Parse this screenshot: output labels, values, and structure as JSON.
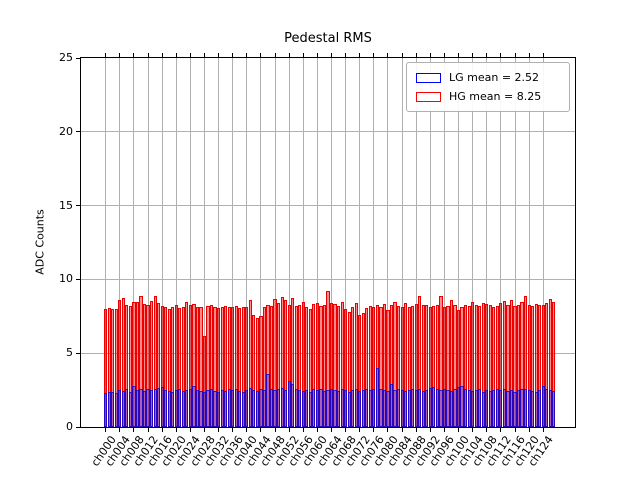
{
  "title": "Pedestal RMS",
  "ylabel": "ADC Counts",
  "colors": {
    "lg": "#0000ff",
    "hg": "#ff0000",
    "grid": "#b0b0b0",
    "spine": "#000000",
    "legend_edge": "#b0b0b0"
  },
  "legend": {
    "position": "upper right",
    "items": [
      {
        "label": "LG mean = 2.52",
        "color": "#0000ff"
      },
      {
        "label": "HG mean = 8.25",
        "color": "#ff0000"
      }
    ]
  },
  "chart_data": {
    "type": "bar",
    "title": "Pedestal RMS",
    "xlabel": "",
    "ylabel": "ADC Counts",
    "ylim": [
      0,
      25
    ],
    "xlim": [
      -7,
      133
    ],
    "yticks": [
      0,
      5,
      10,
      15,
      20,
      25
    ],
    "grid": true,
    "legend_position": "upper right",
    "n_channels": 128,
    "xtick_step": 4,
    "xtick_labels": [
      "ch000",
      "ch004",
      "ch008",
      "ch012",
      "ch016",
      "ch020",
      "ch024",
      "ch028",
      "ch032",
      "ch036",
      "ch040",
      "ch044",
      "ch048",
      "ch052",
      "ch056",
      "ch060",
      "ch064",
      "ch068",
      "ch072",
      "ch076",
      "ch080",
      "ch084",
      "ch088",
      "ch092",
      "ch096",
      "ch100",
      "ch104",
      "ch108",
      "ch112",
      "ch116",
      "ch120",
      "ch124"
    ],
    "series": [
      {
        "name": "LG mean = 2.52",
        "mean": 2.52,
        "color": "#0000ff",
        "edge": "rgba(10,10,215,0.8)",
        "fill": "rgba(0,0,255,0.32)",
        "values": [
          2.3,
          2.4,
          2.35,
          2.3,
          2.5,
          2.45,
          2.6,
          2.4,
          2.75,
          2.5,
          2.55,
          2.45,
          2.6,
          2.5,
          2.55,
          2.65,
          2.7,
          2.5,
          2.45,
          2.4,
          2.5,
          2.55,
          2.45,
          2.5,
          2.6,
          2.75,
          2.5,
          2.45,
          2.4,
          2.5,
          2.6,
          2.45,
          2.4,
          2.5,
          2.45,
          2.55,
          2.5,
          2.6,
          2.45,
          2.4,
          2.5,
          2.65,
          2.5,
          2.45,
          2.55,
          2.5,
          3.6,
          2.6,
          2.5,
          2.55,
          2.65,
          2.5,
          3.1,
          2.9,
          2.6,
          2.5,
          2.45,
          2.5,
          2.4,
          2.55,
          2.5,
          2.6,
          2.45,
          2.5,
          2.55,
          2.5,
          2.45,
          2.6,
          2.5,
          2.4,
          2.5,
          2.55,
          2.45,
          2.5,
          2.6,
          2.5,
          2.55,
          4.0,
          2.6,
          2.5,
          2.45,
          2.9,
          2.5,
          2.55,
          2.5,
          2.45,
          2.5,
          2.6,
          2.5,
          2.55,
          2.45,
          2.5,
          2.65,
          2.7,
          2.6,
          2.5,
          2.55,
          2.5,
          2.45,
          2.6,
          2.7,
          2.75,
          2.6,
          2.5,
          2.45,
          2.5,
          2.55,
          2.4,
          2.5,
          2.45,
          2.5,
          2.6,
          2.5,
          2.55,
          2.45,
          2.5,
          2.4,
          2.5,
          2.55,
          2.6,
          2.5,
          2.45,
          2.4,
          2.5,
          2.8,
          2.6,
          2.5,
          2.45
        ]
      },
      {
        "name": "HG mean = 8.25",
        "mean": 8.25,
        "color": "#ff0000",
        "edge": "#ee0000",
        "fill": "rgba(255,0,0,0.45)",
        "values": [
          8.0,
          8.05,
          8.0,
          8.02,
          8.6,
          8.75,
          8.3,
          8.2,
          8.5,
          8.45,
          8.9,
          8.35,
          8.3,
          8.55,
          8.85,
          8.4,
          8.2,
          8.15,
          8.0,
          8.1,
          8.25,
          8.05,
          8.15,
          8.5,
          8.3,
          8.35,
          8.1,
          8.15,
          6.2,
          8.2,
          8.25,
          8.1,
          8.05,
          8.1,
          8.2,
          8.15,
          8.1,
          8.2,
          8.05,
          8.1,
          8.15,
          8.6,
          7.6,
          7.4,
          7.5,
          8.1,
          8.3,
          8.2,
          8.65,
          8.4,
          8.8,
          8.6,
          8.3,
          8.75,
          8.2,
          8.3,
          8.45,
          8.1,
          8.0,
          8.35,
          8.4,
          8.2,
          8.3,
          9.2,
          8.4,
          8.35,
          8.2,
          8.5,
          8.0,
          7.8,
          8.1,
          8.4,
          7.6,
          7.7,
          8.05,
          8.2,
          8.15,
          8.3,
          8.1,
          8.35,
          7.9,
          8.3,
          8.5,
          8.2,
          8.15,
          8.4,
          8.1,
          8.2,
          8.35,
          8.9,
          8.3,
          8.25,
          8.1,
          8.2,
          8.3,
          8.9,
          8.15,
          8.2,
          8.6,
          8.25,
          7.9,
          8.1,
          8.3,
          8.2,
          8.5,
          8.3,
          8.2,
          8.4,
          8.35,
          8.3,
          8.15,
          8.2,
          8.4,
          8.55,
          8.3,
          8.6,
          8.2,
          8.3,
          8.45,
          8.9,
          8.3,
          8.2,
          8.35,
          8.25,
          8.3,
          8.4,
          8.65,
          8.5
        ]
      }
    ]
  }
}
